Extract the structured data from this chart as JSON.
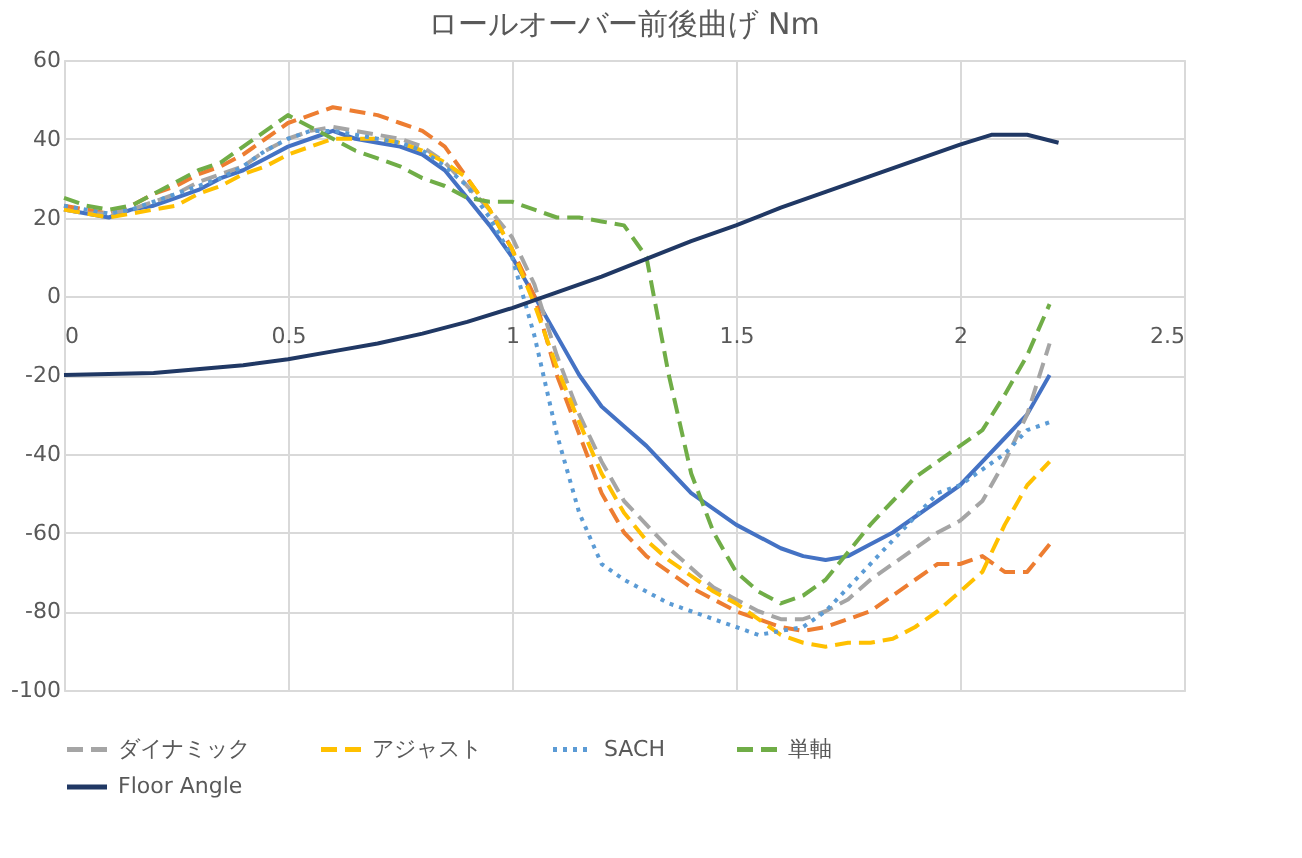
{
  "chart_data": {
    "type": "line",
    "title": "ロールオーバー前後曲げ Nm",
    "x": [
      0,
      0.05,
      0.1,
      0.15,
      0.2,
      0.25,
      0.3,
      0.35,
      0.4,
      0.45,
      0.5,
      0.55,
      0.6,
      0.65,
      0.7,
      0.75,
      0.8,
      0.85,
      0.9,
      0.95,
      1.0,
      1.05,
      1.1,
      1.15,
      1.2,
      1.25,
      1.3,
      1.35,
      1.4,
      1.45,
      1.5,
      1.55,
      1.6,
      1.65,
      1.7,
      1.75,
      1.8,
      1.85,
      1.9,
      1.95,
      2.0,
      2.05,
      2.1,
      2.15,
      2.2
    ],
    "series": [
      {
        "color": "#4472c4",
        "line_style": "solid",
        "values": [
          22,
          21,
          20,
          22,
          23,
          25,
          27,
          30,
          32,
          35,
          38,
          40,
          42,
          40,
          39,
          38,
          36,
          32,
          25,
          18,
          10,
          0,
          -10,
          -20,
          -28,
          -33,
          -38,
          -44,
          -50,
          -54,
          -58,
          -61,
          -64,
          -66,
          -67,
          -66,
          -63,
          -60,
          -56,
          -52,
          -48,
          -42,
          -36,
          -30,
          -20
        ]
      },
      {
        "color": "#ed7d31",
        "line_style": "dashed",
        "values": [
          23,
          22,
          21,
          23,
          26,
          28,
          31,
          33,
          36,
          40,
          44,
          46,
          48,
          47,
          46,
          44,
          42,
          38,
          30,
          22,
          12,
          0,
          -20,
          -35,
          -50,
          -60,
          -66,
          -70,
          -74,
          -77,
          -80,
          -82,
          -84,
          -85,
          -84,
          -82,
          -80,
          -76,
          -72,
          -68,
          -68,
          -66,
          -70,
          -70,
          -63
        ]
      },
      {
        "name": "ダイナミック",
        "color": "#a5a5a5",
        "line_style": "dashed",
        "values": [
          22,
          21,
          21,
          22,
          24,
          26,
          29,
          31,
          33,
          37,
          40,
          42,
          43,
          42,
          41,
          40,
          38,
          34,
          28,
          22,
          15,
          3,
          -15,
          -30,
          -42,
          -52,
          -58,
          -64,
          -69,
          -74,
          -77,
          -80,
          -82,
          -82,
          -80,
          -77,
          -72,
          -68,
          -64,
          -60,
          -57,
          -52,
          -42,
          -30,
          -12
        ]
      },
      {
        "name": "アジャスト",
        "color": "#ffc000",
        "line_style": "dashed",
        "values": [
          22,
          21,
          20,
          21,
          22,
          23,
          26,
          28,
          31,
          33,
          36,
          38,
          40,
          40,
          40,
          39,
          37,
          34,
          30,
          22,
          12,
          -2,
          -18,
          -32,
          -45,
          -55,
          -62,
          -67,
          -71,
          -75,
          -78,
          -82,
          -86,
          -88,
          -89,
          -88,
          -88,
          -87,
          -84,
          -80,
          -75,
          -70,
          -58,
          -48,
          -42
        ]
      },
      {
        "name": "SACH",
        "color": "#5b9bd5",
        "line_style": "dotted",
        "values": [
          23,
          22,
          21,
          22,
          24,
          26,
          28,
          30,
          33,
          37,
          40,
          42,
          42,
          41,
          40,
          39,
          37,
          33,
          28,
          20,
          10,
          -10,
          -35,
          -55,
          -68,
          -72,
          -75,
          -78,
          -80,
          -82,
          -84,
          -86,
          -85,
          -84,
          -80,
          -74,
          -68,
          -62,
          -56,
          -50,
          -48,
          -44,
          -40,
          -34,
          -32
        ]
      },
      {
        "name": "単軸",
        "color": "#70ad47",
        "line_style": "dashed",
        "values": [
          25,
          23,
          22,
          23,
          26,
          29,
          32,
          34,
          38,
          42,
          46,
          43,
          40,
          37,
          35,
          33,
          30,
          28,
          25,
          24,
          24,
          22,
          20,
          20,
          19,
          18,
          10,
          -20,
          -45,
          -60,
          -70,
          -75,
          -78,
          -76,
          -72,
          -65,
          -58,
          -52,
          -46,
          -42,
          -38,
          -34,
          -25,
          -15,
          -2
        ]
      },
      {
        "name": "Floor Angle",
        "color": "#203864",
        "line_style": "solid",
        "x": [
          0,
          0.2,
          0.4,
          0.5,
          0.6,
          0.7,
          0.8,
          0.9,
          1.0,
          1.1,
          1.2,
          1.3,
          1.4,
          1.5,
          1.6,
          1.7,
          1.8,
          1.9,
          2.0,
          2.07,
          2.15,
          2.22
        ],
        "values": [
          -20,
          -19.5,
          -17.5,
          -16,
          -14,
          -12,
          -9.5,
          -6.5,
          -3,
          1,
          5,
          9.5,
          14,
          18,
          22.5,
          26.5,
          30.5,
          34.5,
          38.5,
          41,
          41,
          39
        ]
      }
    ],
    "xlim": [
      0,
      2.5
    ],
    "xticks": [
      0,
      0.5,
      1,
      1.5,
      2,
      2.5
    ],
    "ylim": [
      -100,
      60
    ],
    "yticks": [
      -100,
      -80,
      -60,
      -40,
      -20,
      0,
      20,
      40,
      60
    ],
    "grid": true,
    "legend": "bottom"
  }
}
